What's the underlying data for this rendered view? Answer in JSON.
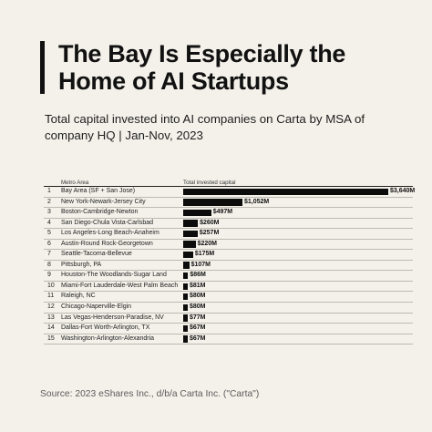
{
  "title": "The Bay Is Especially the Home of AI Startups",
  "subtitle": "Total capital invested into AI companies on Carta by MSA of company HQ | Jan-Nov, 2023",
  "source": "Source: 2023 eShares Inc., d/b/a Carta Inc. (\"Carta\")",
  "chart_data": {
    "type": "bar",
    "orientation": "horizontal",
    "columns": {
      "metro": "Metro Area",
      "total": "Total invested capital"
    },
    "unit": "$M",
    "bar_color": "#0c0c0c",
    "categories": [
      "Bay Area (SF + San Jose)",
      "New York-Newark-Jersey City",
      "Boston-Cambridge-Newton",
      "San Diego-Chula Vista-Carlsbad",
      "Los Angeles-Long Beach-Anaheim",
      "Austin-Round Rock-Georgetown",
      "Seattle-Tacoma-Bellevue",
      "Pittsburgh, PA",
      "Houston-The Woodlands-Sugar Land",
      "Miami-Fort Lauderdale-West Palm Beach",
      "Raleigh, NC",
      "Chicago-Naperville-Elgin",
      "Las Vegas-Henderson-Paradise, NV",
      "Dallas-Fort Worth-Arlington, TX",
      "Washington-Arlington-Alexandria"
    ],
    "values": [
      3640,
      1052,
      497,
      260,
      257,
      220,
      175,
      107,
      86,
      81,
      80,
      80,
      77,
      67,
      67
    ],
    "labels": [
      "$3,640M",
      "$1,052M",
      "$497M",
      "$260M",
      "$257M",
      "$220M",
      "$175M",
      "$107M",
      "$86M",
      "$81M",
      "$80M",
      "$80M",
      "$77M",
      "$67M",
      "$67M"
    ],
    "ranks": [
      "1",
      "2",
      "3",
      "4",
      "5",
      "6",
      "7",
      "8",
      "9",
      "10",
      "11",
      "12",
      "13",
      "14",
      "15"
    ]
  }
}
